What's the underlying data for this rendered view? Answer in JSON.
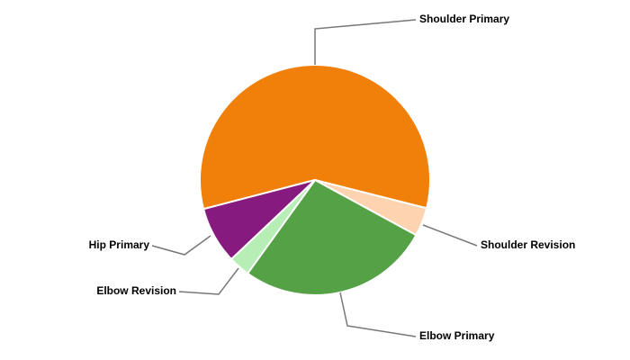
{
  "chart_data": {
    "type": "pie",
    "categories": [
      "Shoulder Primary",
      "Shoulder Revision",
      "Elbow Primary",
      "Elbow Revision",
      "Hip Primary"
    ],
    "values": [
      58,
      4,
      27,
      3,
      8
    ],
    "colors": [
      "#f0800a",
      "#fdd3b0",
      "#55a246",
      "#b6eeb6",
      "#861a7e"
    ]
  }
}
